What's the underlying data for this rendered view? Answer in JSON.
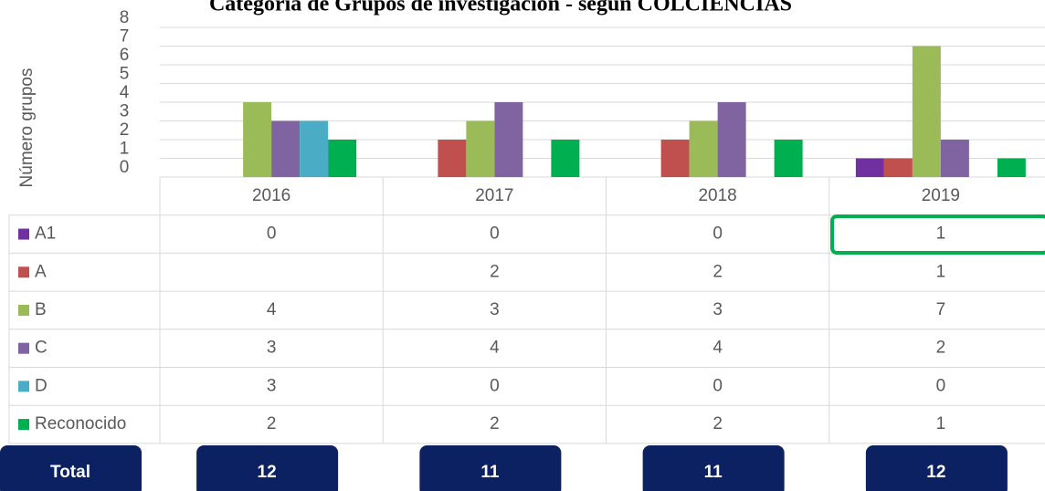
{
  "chart_data": {
    "type": "bar",
    "title": "Categoría de Grupos de investigación - según COLCIENCIAS",
    "y_label": "Número grupos",
    "categories": [
      "2016",
      "2017",
      "2018",
      "2019"
    ],
    "series": [
      {
        "name": "A1",
        "color": "#7030a0",
        "values": [
          0,
          0,
          0,
          1
        ]
      },
      {
        "name": "A",
        "color": "#c0504d",
        "values": [
          null,
          2,
          2,
          1
        ]
      },
      {
        "name": "B",
        "color": "#9bbb59",
        "values": [
          4,
          3,
          3,
          7
        ]
      },
      {
        "name": "C",
        "color": "#8064a2",
        "values": [
          3,
          4,
          4,
          2
        ]
      },
      {
        "name": "D",
        "color": "#4bacc6",
        "values": [
          3,
          0,
          0,
          0
        ]
      },
      {
        "name": "Reconocido",
        "color": "#00b050",
        "values": [
          2,
          2,
          2,
          1
        ]
      }
    ],
    "ylim": [
      0,
      8
    ],
    "yticks": [
      0,
      1,
      2,
      3,
      4,
      5,
      6,
      7,
      8
    ],
    "grid": true,
    "total_label": "Total",
    "totals": [
      12,
      11,
      11,
      12
    ]
  }
}
